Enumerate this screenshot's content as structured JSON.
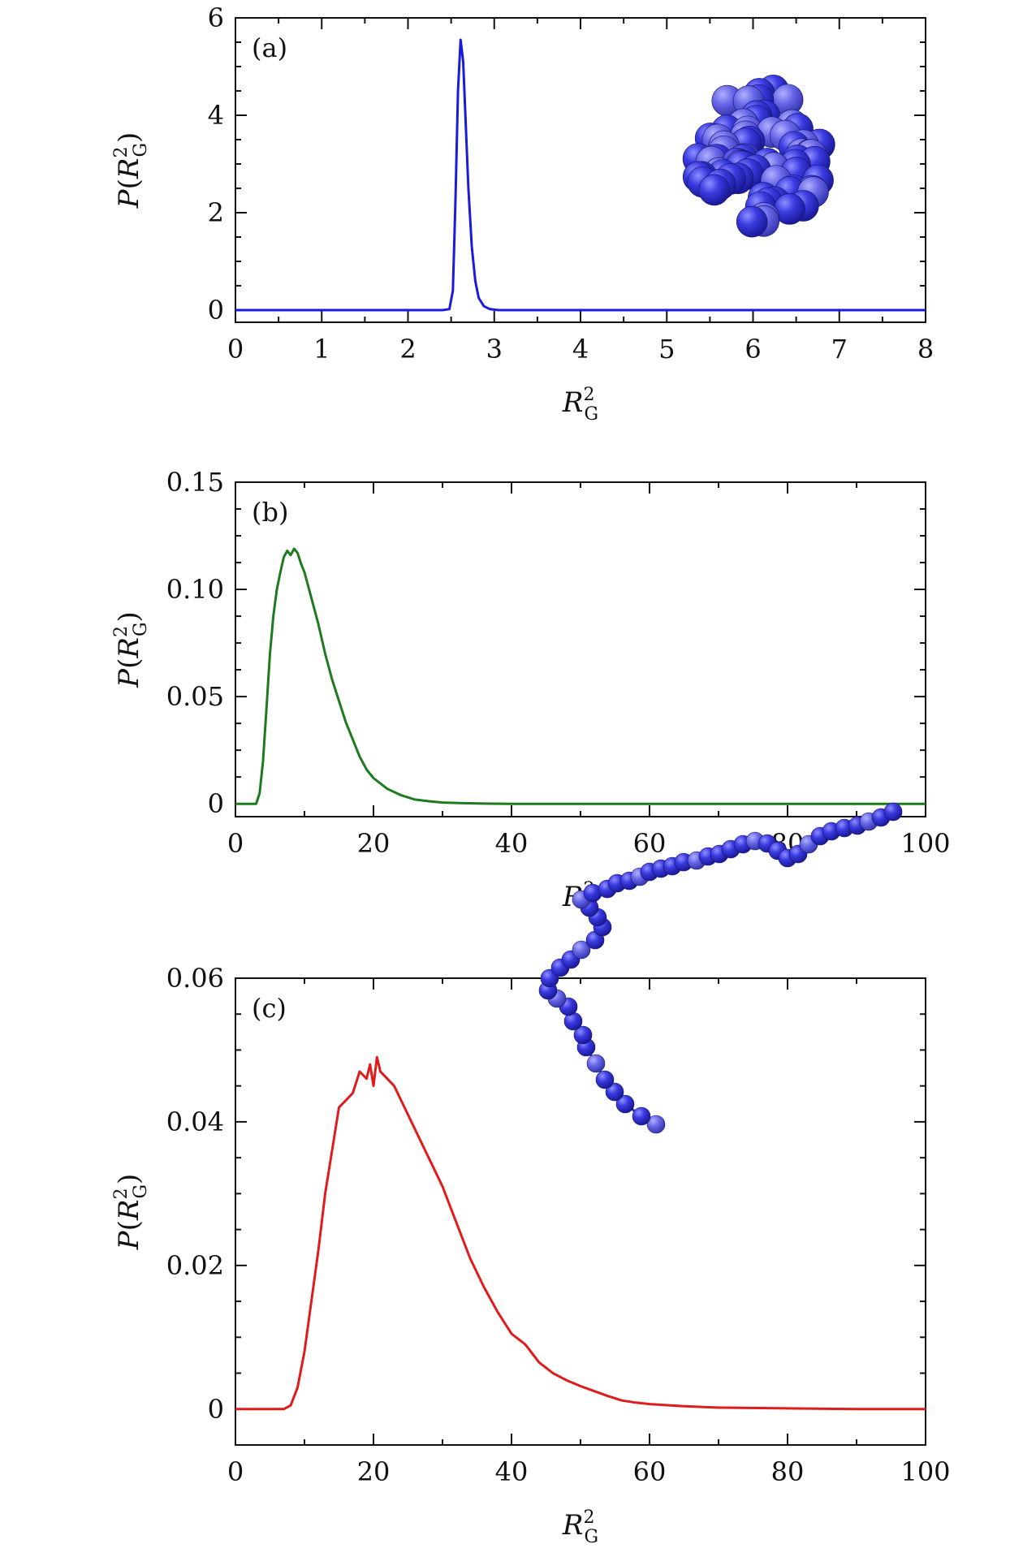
{
  "chart_data": [
    {
      "type": "line",
      "panel_label": "(a)",
      "xlabel": "R_G^2",
      "ylabel": "P(R_G^2)",
      "xlim": [
        0,
        8
      ],
      "ylim": [
        -0.25,
        6
      ],
      "xticks": [
        0,
        1,
        2,
        3,
        4,
        5,
        6,
        7,
        8
      ],
      "xtick_labels": [
        "0",
        "1",
        "2",
        "3",
        "4",
        "5",
        "6",
        "7",
        "8"
      ],
      "yticks": [
        0,
        2,
        4,
        6
      ],
      "ytick_labels": [
        "0",
        "2",
        "4",
        "6"
      ],
      "grid": false,
      "legend": "none",
      "inset": "compact globule of blue beads (top-right)",
      "series": [
        {
          "color": "#1a1adf",
          "x": [
            0,
            2.4,
            2.48,
            2.52,
            2.55,
            2.58,
            2.61,
            2.64,
            2.67,
            2.7,
            2.74,
            2.78,
            2.82,
            2.88,
            2.95,
            3.05,
            4,
            5,
            6,
            7,
            8
          ],
          "y": [
            0,
            0,
            0.02,
            0.4,
            2.2,
            4.5,
            5.55,
            5.1,
            3.8,
            2.5,
            1.3,
            0.6,
            0.25,
            0.08,
            0.02,
            0,
            0,
            0,
            0,
            0,
            0
          ]
        }
      ]
    },
    {
      "type": "line",
      "panel_label": "(b)",
      "xlabel": "R_G^2",
      "ylabel": "P(R_G^2)",
      "xlim": [
        0,
        100
      ],
      "ylim": [
        -0.006,
        0.15
      ],
      "xticks": [
        0,
        20,
        40,
        60,
        80,
        100
      ],
      "xtick_labels": [
        "0",
        "20",
        "40",
        "60",
        "80",
        "100"
      ],
      "yticks": [
        0,
        0.05,
        0.1,
        0.15
      ],
      "ytick_labels": [
        "0",
        "0.05",
        "0.10",
        "0.15"
      ],
      "grid": false,
      "legend": "none",
      "series": [
        {
          "color": "#1e7a1e",
          "x": [
            0,
            3,
            3.5,
            4,
            4.5,
            5,
            5.5,
            6,
            6.5,
            7,
            7.5,
            8,
            8.5,
            9,
            9.5,
            10,
            11,
            12,
            13,
            14,
            15,
            16,
            17,
            18,
            19,
            20,
            22,
            24,
            26,
            28,
            30,
            33,
            36,
            40,
            50,
            60,
            80,
            100
          ],
          "y": [
            0,
            0,
            0.005,
            0.02,
            0.045,
            0.07,
            0.088,
            0.1,
            0.108,
            0.115,
            0.118,
            0.116,
            0.119,
            0.117,
            0.112,
            0.108,
            0.096,
            0.084,
            0.07,
            0.058,
            0.048,
            0.038,
            0.03,
            0.022,
            0.016,
            0.012,
            0.007,
            0.004,
            0.002,
            0.0012,
            0.0006,
            0.0003,
            0.0001,
            0,
            0,
            0,
            0,
            0
          ]
        }
      ]
    },
    {
      "type": "line",
      "panel_label": "(c)",
      "xlabel": "R_G^2",
      "ylabel": "P(R_G^2)",
      "xlim": [
        0,
        100
      ],
      "ylim": [
        -0.005,
        0.06
      ],
      "xticks": [
        0,
        20,
        40,
        60,
        80,
        100
      ],
      "xtick_labels": [
        "0",
        "20",
        "40",
        "60",
        "80",
        "100"
      ],
      "yticks": [
        0,
        0.02,
        0.04,
        0.06
      ],
      "ytick_labels": [
        "0",
        "0.02",
        "0.04",
        "0.06"
      ],
      "grid": false,
      "legend": "none",
      "inset": "extended chain of blue beads (right)",
      "series": [
        {
          "color": "#e01b1b",
          "x": [
            0,
            7,
            8,
            9,
            10,
            11,
            12,
            13,
            14,
            15,
            16,
            17,
            18,
            19,
            19.5,
            20,
            20.5,
            21,
            22,
            23,
            24,
            25,
            26,
            27,
            28,
            29,
            30,
            32,
            34,
            36,
            38,
            40,
            42,
            44,
            46,
            48,
            50,
            52,
            54,
            56,
            58,
            60,
            65,
            70,
            80,
            90,
            100
          ],
          "y": [
            0,
            0,
            0.0005,
            0.003,
            0.008,
            0.015,
            0.022,
            0.03,
            0.036,
            0.042,
            0.043,
            0.044,
            0.047,
            0.046,
            0.048,
            0.045,
            0.049,
            0.047,
            0.046,
            0.045,
            0.043,
            0.041,
            0.039,
            0.037,
            0.035,
            0.033,
            0.031,
            0.026,
            0.021,
            0.017,
            0.0135,
            0.0105,
            0.009,
            0.0065,
            0.005,
            0.004,
            0.0032,
            0.0025,
            0.0018,
            0.0012,
            0.0009,
            0.0007,
            0.0004,
            0.0002,
            0.0001,
            0,
            0
          ]
        }
      ]
    }
  ]
}
